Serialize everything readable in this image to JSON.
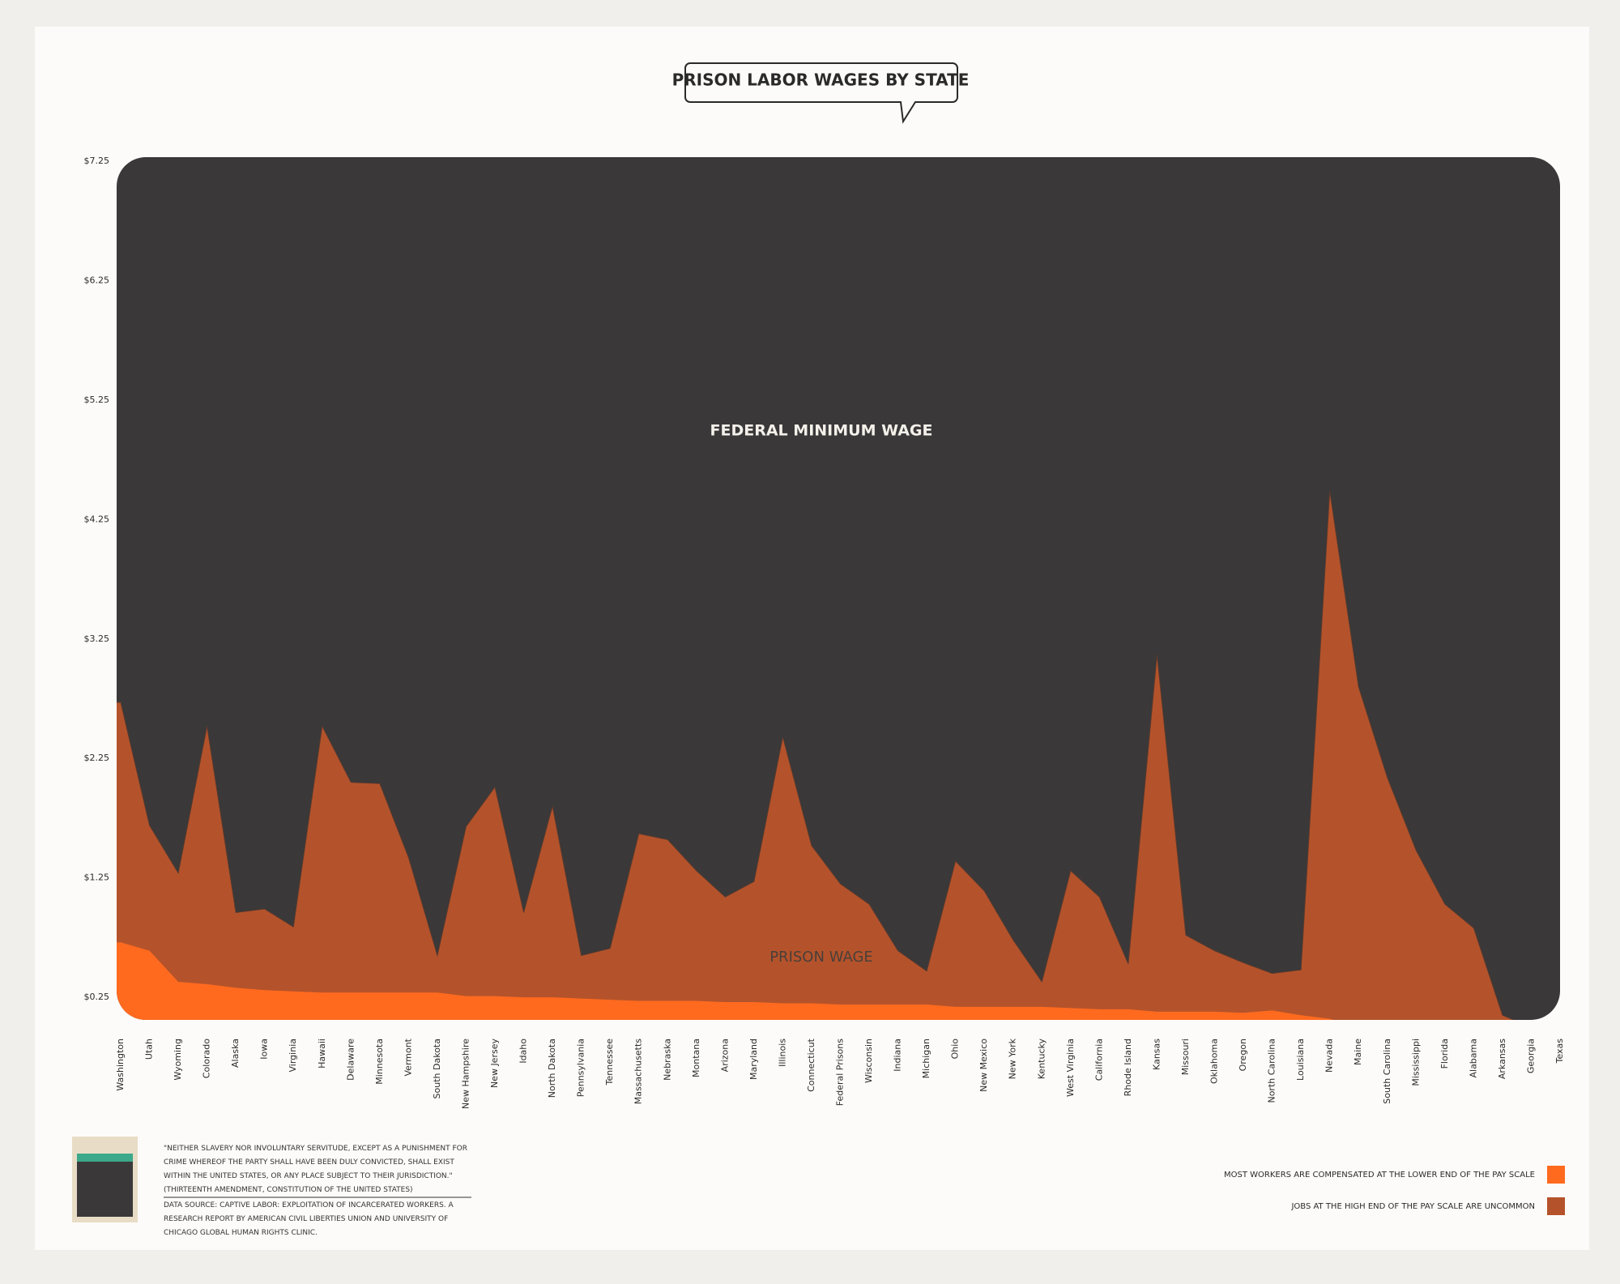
{
  "chart_data": {
    "type": "area",
    "title": "PRISON LABOR WAGES BY STATE",
    "annotations": [
      "FEDERAL MINIMUM WAGE",
      "PRISON WAGE"
    ],
    "footnotes": [
      "\"NEITHER SLAVERY NOR INVOLUNTARY SERVITUDE, EXCEPT AS A PUNISHMENT FOR CRIME WHEREOF THE PARTY SHALL HAVE BEEN DULY CONVICTED, SHALL EXIST WITHIN THE UNITED STATES, OR ANY PLACE SUBJECT TO THEIR JURISDICTION.\" (THIRTEENTH AMENDMENT, CONSTITUTION OF THE UNITED STATES)",
      "DATA SOURCE: CAPTIVE LABOR: EXPLOITATION OF INCARCERATED WORKERS. A RESEARCH REPORT BY AMERICAN CIVIL LIBERTIES UNION AND UNIVERSITY OF CHICAGO GLOBAL HUMAN RIGHTS CLINIC."
    ],
    "categories": [
      "Washington",
      "Utah",
      "Wyoming",
      "Colorado",
      "Alaska",
      "Iowa",
      "Virginia",
      "Hawaii",
      "Delaware",
      "Minnesota",
      "Vermont",
      "South Dakota",
      "New Hampshire",
      "New Jersey",
      "Idaho",
      "North Dakota",
      "Pennsylvania",
      "Tennessee",
      "Massachusetts",
      "Nebraska",
      "Montana",
      "Arizona",
      "Maryland",
      "Illinois",
      "Connecticut",
      "Federal Prisons",
      "Wisconsin",
      "Indiana",
      "Michigan",
      "Ohio",
      "New Mexico",
      "New York",
      "Kentucky",
      "West Virginia",
      "California",
      "Rhode Island",
      "Kansas",
      "Missouri",
      "Oklahoma",
      "Oregon",
      "North Carolina",
      "Louisiana",
      "Nevada",
      "Maine",
      "South Carolina",
      "Mississippi",
      "Florida",
      "Alabama",
      "Arkansas",
      "Georgia",
      "Texas"
    ],
    "series": [
      {
        "name": "JOBS AT THE HIGH END OF THE PAY SCALE ARE UNCOMMON",
        "color": "#b4532b",
        "values": [
          2.72,
          1.69,
          1.29,
          2.52,
          0.96,
          0.99,
          0.84,
          2.52,
          2.05,
          2.04,
          1.42,
          0.6,
          1.68,
          2.01,
          0.96,
          1.85,
          0.6,
          0.66,
          1.62,
          1.57,
          1.31,
          1.09,
          1.22,
          2.43,
          1.52,
          1.2,
          1.03,
          0.64,
          0.47,
          1.39,
          1.14,
          0.73,
          0.38,
          1.31,
          1.09,
          0.53,
          3.12,
          0.77,
          0.64,
          0.54,
          0.45,
          0.48,
          4.49,
          2.85,
          2.09,
          1.48,
          1.03,
          0.83,
          0.1,
          0,
          0
        ]
      },
      {
        "name": "MOST WORKERS ARE COMPENSATED AT THE LOWER END OF THE PAY SCALE",
        "color": "#ff6a1f",
        "values": [
          0.71,
          0.64,
          0.38,
          0.36,
          0.33,
          0.31,
          0.3,
          0.29,
          0.29,
          0.29,
          0.29,
          0.29,
          0.26,
          0.26,
          0.25,
          0.25,
          0.24,
          0.23,
          0.22,
          0.22,
          0.22,
          0.21,
          0.21,
          0.2,
          0.2,
          0.19,
          0.19,
          0.19,
          0.19,
          0.17,
          0.17,
          0.17,
          0.17,
          0.16,
          0.15,
          0.15,
          0.13,
          0.13,
          0.13,
          0.12,
          0.14,
          0.1,
          0.07,
          0,
          0,
          0,
          0,
          0,
          0,
          0,
          0
        ]
      }
    ],
    "ylim": [
      0,
      7.25
    ],
    "yticks": [
      {
        "value": 0.25,
        "label": "$0.25"
      },
      {
        "value": 1.25,
        "label": "$1.25"
      },
      {
        "value": 2.25,
        "label": "$2.25"
      },
      {
        "value": 3.25,
        "label": "$3.25"
      },
      {
        "value": 4.25,
        "label": "$4.25"
      },
      {
        "value": 5.25,
        "label": "$5.25"
      },
      {
        "value": 6.25,
        "label": "$6.25"
      },
      {
        "value": 7.25,
        "label": "$7.25"
      }
    ],
    "background_color": "#3a3839",
    "grid": false,
    "legend": "bottom-right"
  }
}
